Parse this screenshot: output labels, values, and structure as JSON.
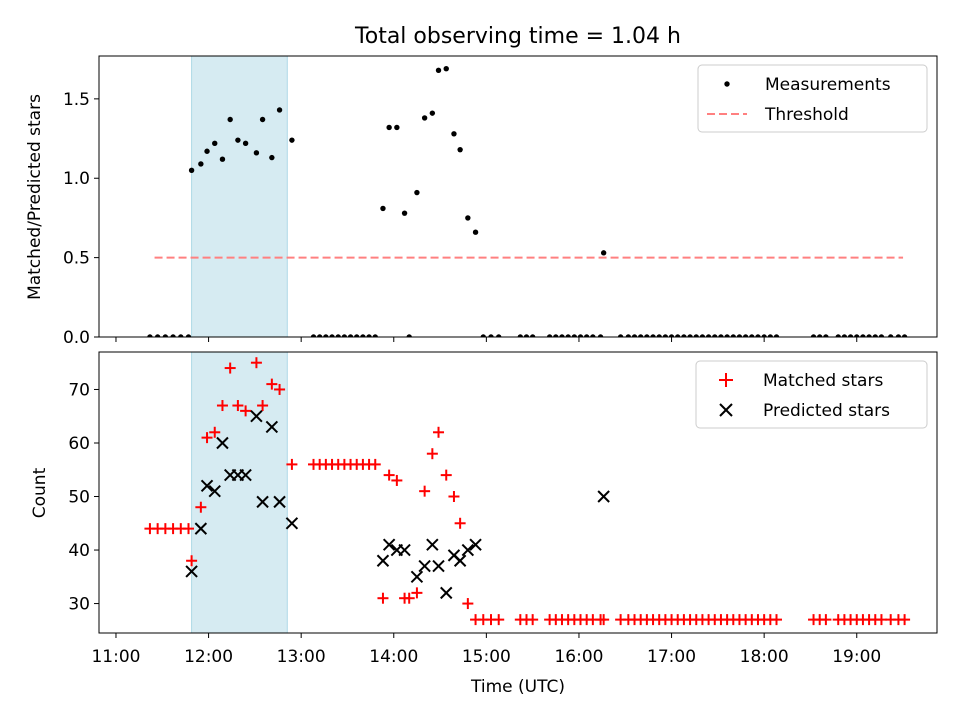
{
  "figure": {
    "title": "Total observing time = 1.04 h"
  },
  "colors": {
    "matched": "#ff0000",
    "predicted": "#000000",
    "threshold": "#ff8080",
    "shade": "#add8e6"
  },
  "chart_data": [
    {
      "type": "scatter",
      "ylabel": "Matched/Predicted stars",
      "xlabel": "",
      "ylim": [
        0,
        1.77
      ],
      "yticks": [
        "0.0",
        "0.5",
        "1.0",
        "1.5"
      ],
      "ytick_values": [
        0,
        0.5,
        1.0,
        1.5
      ],
      "xlim": [
        "10:49",
        "19:52"
      ],
      "xticks_visible": false,
      "legend_position": "upper right",
      "shaded_interval": [
        "11:49",
        "12:51"
      ],
      "threshold": {
        "name": "Threshold",
        "value": 0.5,
        "x_range": [
          "11:25",
          "19:30"
        ],
        "style": "dashed"
      },
      "series": [
        {
          "name": "Measurements",
          "marker": "dot",
          "points": [
            [
              "11:22",
              0
            ],
            [
              "11:27",
              0
            ],
            [
              "11:32",
              0
            ],
            [
              "11:37",
              0
            ],
            [
              "11:42",
              0
            ],
            [
              "11:47",
              0
            ],
            [
              "11:49",
              1.05
            ],
            [
              "11:55",
              1.09
            ],
            [
              "11:59",
              1.17
            ],
            [
              "12:04",
              1.22
            ],
            [
              "12:09",
              1.12
            ],
            [
              "12:14",
              1.37
            ],
            [
              "12:19",
              1.24
            ],
            [
              "12:24",
              1.22
            ],
            [
              "12:31",
              1.16
            ],
            [
              "12:35",
              1.37
            ],
            [
              "12:41",
              1.13
            ],
            [
              "12:46",
              1.43
            ],
            [
              "12:54",
              1.24
            ],
            [
              "13:08",
              0
            ],
            [
              "13:12",
              0
            ],
            [
              "13:16",
              0
            ],
            [
              "13:20",
              0
            ],
            [
              "13:24",
              0
            ],
            [
              "13:28",
              0
            ],
            [
              "13:32",
              0
            ],
            [
              "13:36",
              0
            ],
            [
              "13:40",
              0
            ],
            [
              "13:44",
              0
            ],
            [
              "13:48",
              0
            ],
            [
              "13:53",
              0.81
            ],
            [
              "13:57",
              1.32
            ],
            [
              "14:02",
              1.32
            ],
            [
              "14:07",
              0.78
            ],
            [
              "14:10",
              0
            ],
            [
              "14:15",
              0.91
            ],
            [
              "14:20",
              1.38
            ],
            [
              "14:25",
              1.41
            ],
            [
              "14:29",
              1.68
            ],
            [
              "14:34",
              1.69
            ],
            [
              "14:39",
              1.28
            ],
            [
              "14:43",
              1.18
            ],
            [
              "14:48",
              0.75
            ],
            [
              "14:53",
              0.66
            ],
            [
              "14:58",
              0
            ],
            [
              "15:03",
              0
            ],
            [
              "15:08",
              0
            ],
            [
              "15:22",
              0
            ],
            [
              "15:26",
              0
            ],
            [
              "15:30",
              0
            ],
            [
              "15:41",
              0
            ],
            [
              "15:45",
              0
            ],
            [
              "15:49",
              0
            ],
            [
              "15:53",
              0
            ],
            [
              "15:57",
              0
            ],
            [
              "16:01",
              0
            ],
            [
              "16:05",
              0
            ],
            [
              "16:09",
              0
            ],
            [
              "16:14",
              0
            ],
            [
              "16:16",
              0.53
            ],
            [
              "16:27",
              0
            ],
            [
              "16:32",
              0
            ],
            [
              "16:36",
              0
            ],
            [
              "16:40",
              0
            ],
            [
              "16:44",
              0
            ],
            [
              "16:48",
              0
            ],
            [
              "16:52",
              0
            ],
            [
              "16:56",
              0
            ],
            [
              "17:00",
              0
            ],
            [
              "17:04",
              0
            ],
            [
              "17:08",
              0
            ],
            [
              "17:12",
              0
            ],
            [
              "17:16",
              0
            ],
            [
              "17:20",
              0
            ],
            [
              "17:24",
              0
            ],
            [
              "17:28",
              0
            ],
            [
              "17:32",
              0
            ],
            [
              "17:36",
              0
            ],
            [
              "17:40",
              0
            ],
            [
              "17:44",
              0
            ],
            [
              "17:48",
              0
            ],
            [
              "17:52",
              0
            ],
            [
              "17:56",
              0
            ],
            [
              "18:00",
              0
            ],
            [
              "18:04",
              0
            ],
            [
              "18:08",
              0
            ],
            [
              "18:32",
              0
            ],
            [
              "18:36",
              0
            ],
            [
              "18:40",
              0
            ],
            [
              "18:48",
              0
            ],
            [
              "18:52",
              0
            ],
            [
              "18:56",
              0
            ],
            [
              "19:00",
              0
            ],
            [
              "19:04",
              0
            ],
            [
              "19:08",
              0
            ],
            [
              "19:12",
              0
            ],
            [
              "19:16",
              0
            ],
            [
              "19:22",
              0
            ],
            [
              "19:27",
              0
            ],
            [
              "19:31",
              0
            ]
          ]
        }
      ]
    },
    {
      "type": "scatter",
      "ylabel": "Count",
      "xlabel": "Time (UTC)",
      "ylim": [
        24.5,
        77
      ],
      "yticks": [
        "30",
        "40",
        "50",
        "60",
        "70"
      ],
      "ytick_values": [
        30,
        40,
        50,
        60,
        70
      ],
      "xlim": [
        "10:49",
        "19:52"
      ],
      "xticks": [
        "11:00",
        "12:00",
        "13:00",
        "14:00",
        "15:00",
        "16:00",
        "17:00",
        "18:00",
        "19:00"
      ],
      "legend_position": "upper right",
      "shaded_interval": [
        "11:49",
        "12:51"
      ],
      "series": [
        {
          "name": "Matched stars",
          "marker": "plus",
          "points": [
            [
              "11:22",
              44
            ],
            [
              "11:27",
              44
            ],
            [
              "11:32",
              44
            ],
            [
              "11:37",
              44
            ],
            [
              "11:42",
              44
            ],
            [
              "11:47",
              44
            ],
            [
              "11:49",
              38
            ],
            [
              "11:55",
              48
            ],
            [
              "11:59",
              61
            ],
            [
              "12:04",
              62
            ],
            [
              "12:09",
              67
            ],
            [
              "12:14",
              74
            ],
            [
              "12:19",
              67
            ],
            [
              "12:24",
              66
            ],
            [
              "12:31",
              75
            ],
            [
              "12:35",
              67
            ],
            [
              "12:41",
              71
            ],
            [
              "12:46",
              70
            ],
            [
              "12:54",
              56
            ],
            [
              "13:08",
              56
            ],
            [
              "13:12",
              56
            ],
            [
              "13:16",
              56
            ],
            [
              "13:20",
              56
            ],
            [
              "13:24",
              56
            ],
            [
              "13:28",
              56
            ],
            [
              "13:32",
              56
            ],
            [
              "13:36",
              56
            ],
            [
              "13:40",
              56
            ],
            [
              "13:44",
              56
            ],
            [
              "13:48",
              56
            ],
            [
              "13:53",
              31
            ],
            [
              "13:57",
              54
            ],
            [
              "14:02",
              53
            ],
            [
              "14:07",
              31
            ],
            [
              "14:10",
              31
            ],
            [
              "14:15",
              32
            ],
            [
              "14:20",
              51
            ],
            [
              "14:25",
              58
            ],
            [
              "14:29",
              62
            ],
            [
              "14:34",
              54
            ],
            [
              "14:39",
              50
            ],
            [
              "14:43",
              45
            ],
            [
              "14:48",
              30
            ],
            [
              "14:53",
              27
            ],
            [
              "14:58",
              27
            ],
            [
              "15:03",
              27
            ],
            [
              "15:08",
              27
            ],
            [
              "15:22",
              27
            ],
            [
              "15:26",
              27
            ],
            [
              "15:30",
              27
            ],
            [
              "15:41",
              27
            ],
            [
              "15:45",
              27
            ],
            [
              "15:49",
              27
            ],
            [
              "15:53",
              27
            ],
            [
              "15:57",
              27
            ],
            [
              "16:01",
              27
            ],
            [
              "16:05",
              27
            ],
            [
              "16:09",
              27
            ],
            [
              "16:14",
              27
            ],
            [
              "16:16",
              27
            ],
            [
              "16:27",
              27
            ],
            [
              "16:32",
              27
            ],
            [
              "16:36",
              27
            ],
            [
              "16:40",
              27
            ],
            [
              "16:44",
              27
            ],
            [
              "16:48",
              27
            ],
            [
              "16:52",
              27
            ],
            [
              "16:56",
              27
            ],
            [
              "17:00",
              27
            ],
            [
              "17:04",
              27
            ],
            [
              "17:08",
              27
            ],
            [
              "17:12",
              27
            ],
            [
              "17:16",
              27
            ],
            [
              "17:20",
              27
            ],
            [
              "17:24",
              27
            ],
            [
              "17:28",
              27
            ],
            [
              "17:32",
              27
            ],
            [
              "17:36",
              27
            ],
            [
              "17:40",
              27
            ],
            [
              "17:44",
              27
            ],
            [
              "17:48",
              27
            ],
            [
              "17:52",
              27
            ],
            [
              "17:56",
              27
            ],
            [
              "18:00",
              27
            ],
            [
              "18:04",
              27
            ],
            [
              "18:08",
              27
            ],
            [
              "18:32",
              27
            ],
            [
              "18:36",
              27
            ],
            [
              "18:40",
              27
            ],
            [
              "18:48",
              27
            ],
            [
              "18:52",
              27
            ],
            [
              "18:56",
              27
            ],
            [
              "19:00",
              27
            ],
            [
              "19:04",
              27
            ],
            [
              "19:08",
              27
            ],
            [
              "19:12",
              27
            ],
            [
              "19:16",
              27
            ],
            [
              "19:22",
              27
            ],
            [
              "19:27",
              27
            ],
            [
              "19:31",
              27
            ]
          ]
        },
        {
          "name": "Predicted stars",
          "marker": "x",
          "points": [
            [
              "11:49",
              36
            ],
            [
              "11:55",
              44
            ],
            [
              "11:59",
              52
            ],
            [
              "12:04",
              51
            ],
            [
              "12:09",
              60
            ],
            [
              "12:14",
              54
            ],
            [
              "12:19",
              54
            ],
            [
              "12:24",
              54
            ],
            [
              "12:31",
              65
            ],
            [
              "12:35",
              49
            ],
            [
              "12:41",
              63
            ],
            [
              "12:46",
              49
            ],
            [
              "12:54",
              45
            ],
            [
              "13:53",
              38
            ],
            [
              "13:57",
              41
            ],
            [
              "14:02",
              40
            ],
            [
              "14:07",
              40
            ],
            [
              "14:15",
              35
            ],
            [
              "14:20",
              37
            ],
            [
              "14:25",
              41
            ],
            [
              "14:29",
              37
            ],
            [
              "14:34",
              32
            ],
            [
              "14:39",
              39
            ],
            [
              "14:43",
              38
            ],
            [
              "14:48",
              40
            ],
            [
              "14:53",
              41
            ],
            [
              "16:16",
              50
            ]
          ]
        }
      ]
    }
  ]
}
